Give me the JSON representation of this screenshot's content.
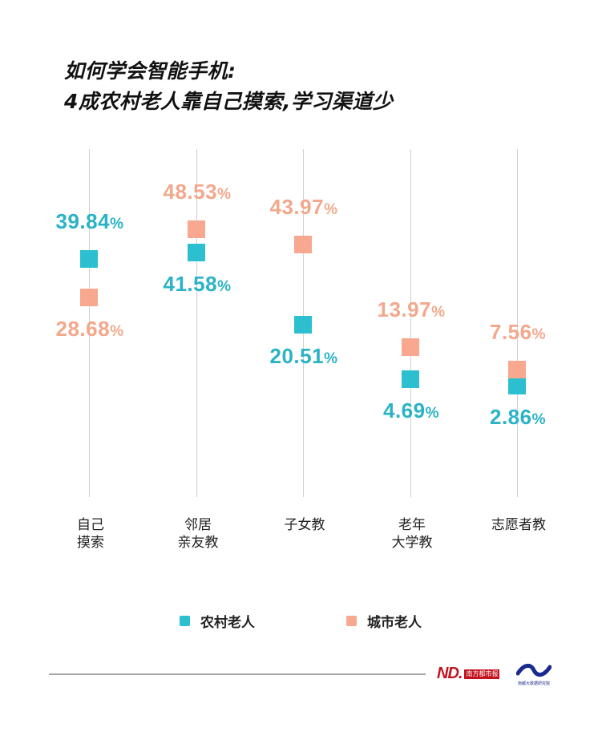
{
  "title": {
    "line1": "如何学会智能手机:",
    "line2": "4成农村老人靠自己摸索,学习渠道少"
  },
  "colors": {
    "rural": "#2bbfcf",
    "rural_text": "#2ab3c6",
    "urban": "#f7a88e",
    "urban_text": "#f2a88c",
    "grid": "#d0d0d0"
  },
  "legend": {
    "rural": "农村老人",
    "urban": "城市老人"
  },
  "categories": [
    {
      "label": "自己\n摸索",
      "rural": "39.84",
      "urban": "28.68"
    },
    {
      "label": "邻居\n亲友教",
      "rural": "41.58",
      "urban": "48.53"
    },
    {
      "label": "子女教",
      "rural": "20.51",
      "urban": "43.97"
    },
    {
      "label": "老年\n大学教",
      "rural": "4.69",
      "urban": "13.97"
    },
    {
      "label": "志愿者教",
      "rural": "2.86",
      "urban": "7.56"
    }
  ],
  "percent_sign": "%",
  "footer": {
    "logo_left_mark": "ND.",
    "logo_left_text": "南方都市报",
    "logo_right_text": "南都大数据研究院"
  },
  "chart_data": {
    "type": "scatter",
    "title": "如何学会智能手机: 4成农村老人靠自己摸索,学习渠道少",
    "categories": [
      "自己摸索",
      "邻居亲友教",
      "子女教",
      "老年大学教",
      "志愿者教"
    ],
    "series": [
      {
        "name": "农村老人",
        "color": "#2bbfcf",
        "values": [
          39.84,
          41.58,
          20.51,
          4.69,
          2.86
        ]
      },
      {
        "name": "城市老人",
        "color": "#f7a88e",
        "values": [
          28.68,
          48.53,
          43.97,
          13.97,
          7.56
        ]
      }
    ],
    "unit": "%",
    "xlabel": "",
    "ylabel": "",
    "ylim": [
      0,
      55
    ],
    "grid": "vertical lines per category",
    "legend_position": "bottom"
  }
}
